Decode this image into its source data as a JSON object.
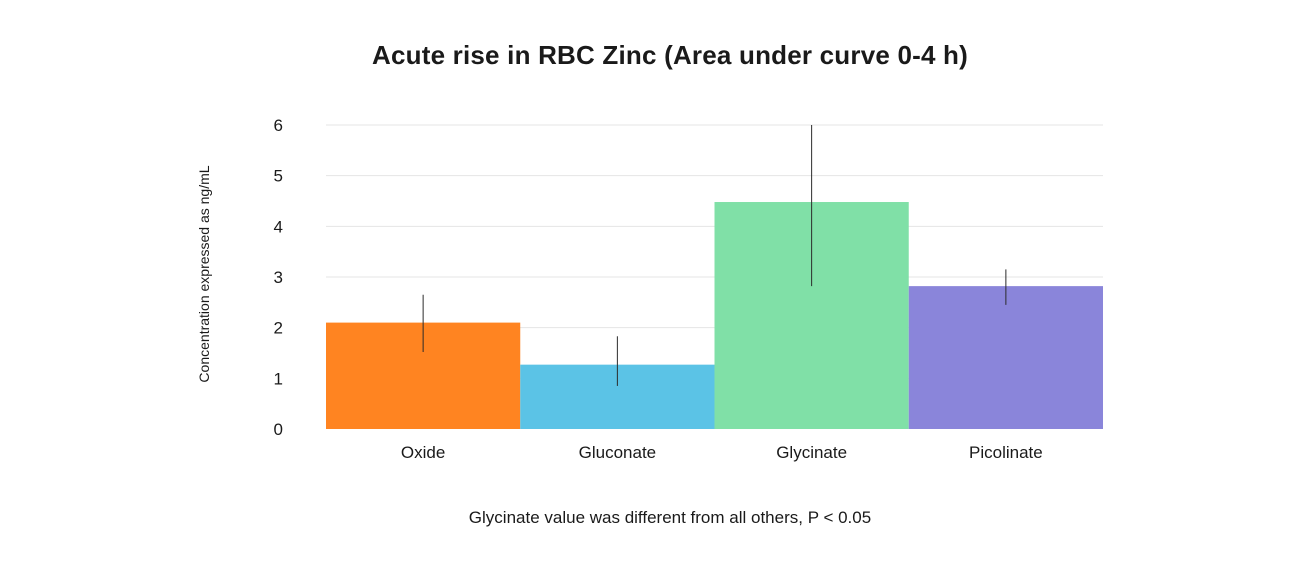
{
  "chart_data": {
    "type": "bar",
    "title": "Acute rise in RBC Zinc (Area under curve 0-4 h)",
    "ylabel": "Concentration expressed as ng/mL",
    "xlabel": "",
    "note": "Glycinate value was different from all others, P < 0.05",
    "categories": [
      "Oxide",
      "Gluconate",
      "Glycinate",
      "Picolinate"
    ],
    "values": [
      2.1,
      1.27,
      4.48,
      2.82
    ],
    "error_low": [
      1.52,
      0.85,
      2.82,
      2.45
    ],
    "error_high": [
      2.65,
      1.83,
      6.0,
      3.15
    ],
    "colors": [
      "#FF8421",
      "#5BC3E6",
      "#80E0A7",
      "#8A85DA"
    ],
    "ylim": [
      0,
      6
    ],
    "yticks": [
      0,
      1,
      2,
      3,
      4,
      5,
      6
    ],
    "grid": true
  }
}
